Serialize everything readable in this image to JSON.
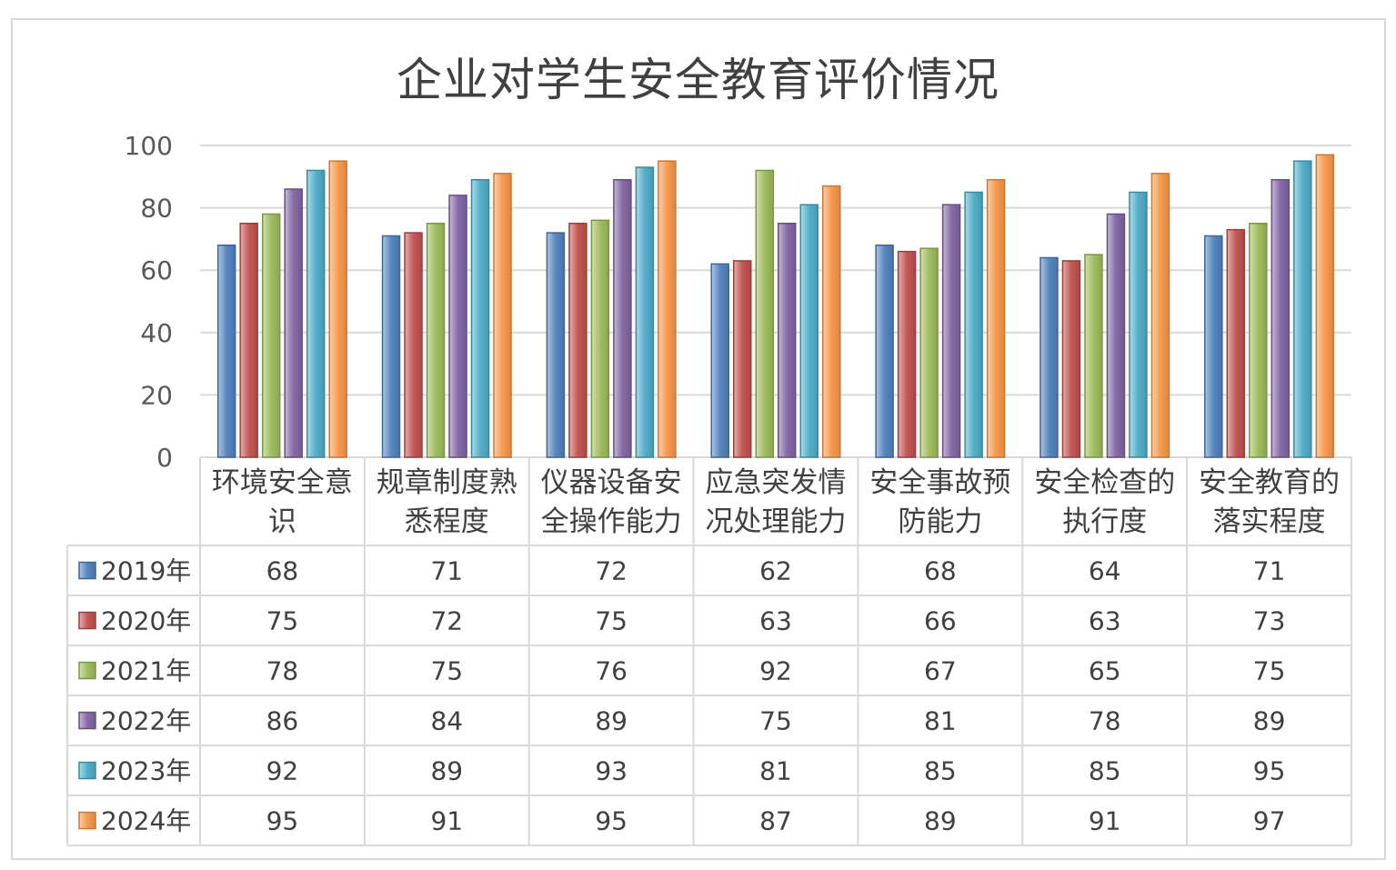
{
  "chart_data": {
    "type": "bar",
    "title": "企业对学生安全教育评价情况",
    "categories": [
      [
        "环境安全意",
        "识"
      ],
      [
        "规章制度熟",
        "悉程度"
      ],
      [
        "仪器设备安",
        "全操作能力"
      ],
      [
        "应急突发情",
        "况处理能力"
      ],
      [
        "安全事故预",
        "防能力"
      ],
      [
        "安全检查的",
        "执行度"
      ],
      [
        "安全教育的",
        "落实程度"
      ]
    ],
    "series": [
      {
        "name": "2019年",
        "color": "#4f81bd",
        "values": [
          68,
          71,
          72,
          62,
          68,
          64,
          71
        ]
      },
      {
        "name": "2020年",
        "color": "#c0504d",
        "values": [
          75,
          72,
          75,
          63,
          66,
          63,
          73
        ]
      },
      {
        "name": "2021年",
        "color": "#9bbb59",
        "values": [
          78,
          75,
          76,
          92,
          67,
          65,
          75
        ]
      },
      {
        "name": "2022年",
        "color": "#8064a2",
        "values": [
          86,
          84,
          89,
          75,
          81,
          78,
          89
        ]
      },
      {
        "name": "2023年",
        "color": "#4bacc6",
        "values": [
          92,
          89,
          93,
          81,
          85,
          85,
          95
        ]
      },
      {
        "name": "2024年",
        "color": "#f79646",
        "values": [
          95,
          91,
          95,
          87,
          89,
          91,
          97
        ]
      }
    ],
    "yticks": [
      0,
      20,
      40,
      60,
      80,
      100
    ],
    "ylim": [
      0,
      100
    ],
    "grid": true,
    "legend": "data-table"
  }
}
